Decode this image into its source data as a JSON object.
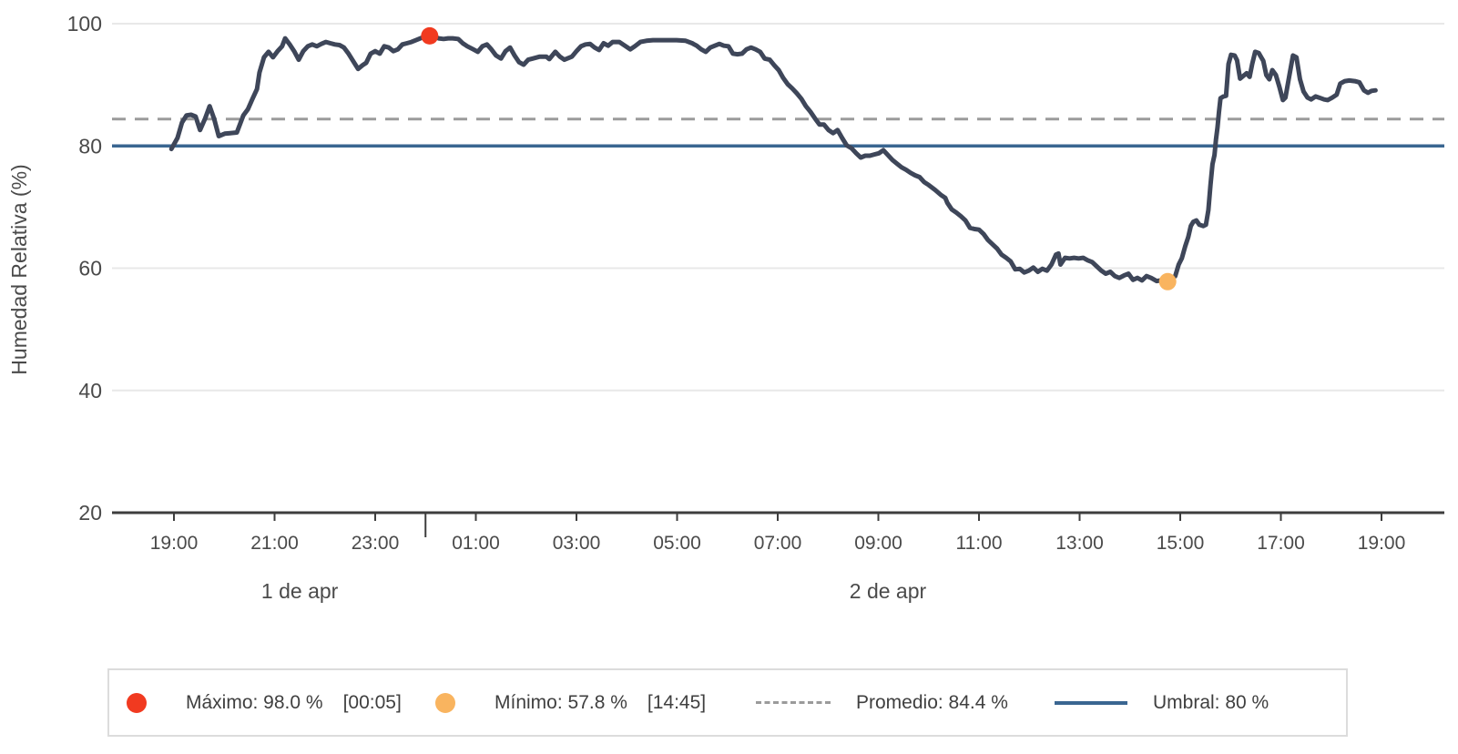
{
  "page": {
    "background": "#ffffff"
  },
  "chart_data": {
    "type": "line",
    "title": "",
    "xlabel": "",
    "ylabel": "Humedad Relativa (%)",
    "yticks": [
      20,
      40,
      60,
      80,
      100
    ],
    "ylim": [
      20,
      103.5
    ],
    "grid": true,
    "grid_color": "#e8e8e8",
    "axis_color": "#3d3d3d",
    "tick_label_color": "#4a4a4a",
    "x_ticks": [
      {
        "hour": 0,
        "label": "19:00"
      },
      {
        "hour": 2,
        "label": "21:00"
      },
      {
        "hour": 4,
        "label": "23:00"
      },
      {
        "hour": 6,
        "label": "01:00"
      },
      {
        "hour": 8,
        "label": "03:00"
      },
      {
        "hour": 10,
        "label": "05:00"
      },
      {
        "hour": 12,
        "label": "07:00"
      },
      {
        "hour": 14,
        "label": "09:00"
      },
      {
        "hour": 16,
        "label": "11:00"
      },
      {
        "hour": 18,
        "label": "13:00"
      },
      {
        "hour": 20,
        "label": "15:00"
      },
      {
        "hour": 22,
        "label": "17:00"
      },
      {
        "hour": 24,
        "label": "19:00"
      }
    ],
    "day_dividers": [
      {
        "hour": 5
      }
    ],
    "day_labels": [
      {
        "label": "1 de apr",
        "hour_center": 2.5
      },
      {
        "label": "2 de apr",
        "hour_center": 14.19
      }
    ],
    "reference_lines": [
      {
        "name": "promedio",
        "value": 84.4,
        "style": "dashed",
        "color": "#9b9b9b"
      },
      {
        "name": "umbral",
        "value": 80,
        "style": "solid",
        "color": "#3a6691"
      }
    ],
    "markers": [
      {
        "name": "maximo",
        "hour": 5.083,
        "value": 98.0,
        "color": "#f13a20",
        "time_label": "00:05"
      },
      {
        "name": "minimo",
        "hour": 19.75,
        "value": 57.8,
        "color": "#f9b45f",
        "time_label": "14:45"
      }
    ],
    "series": [
      {
        "name": "Humedad Relativa",
        "color": "#3e4659",
        "width": 5,
        "points": [
          [
            -0.05,
            79.5
          ],
          [
            0.07,
            81.3
          ],
          [
            0.16,
            83.8
          ],
          [
            0.25,
            85.0
          ],
          [
            0.34,
            85.1
          ],
          [
            0.43,
            84.8
          ],
          [
            0.52,
            82.6
          ],
          [
            0.62,
            84.5
          ],
          [
            0.71,
            86.5
          ],
          [
            0.8,
            84.4
          ],
          [
            0.89,
            81.6
          ],
          [
            1.01,
            82.0
          ],
          [
            1.12,
            82.1
          ],
          [
            1.25,
            82.2
          ],
          [
            1.38,
            85.0
          ],
          [
            1.47,
            86.0
          ],
          [
            1.56,
            87.7
          ],
          [
            1.65,
            89.3
          ],
          [
            1.7,
            92.0
          ],
          [
            1.79,
            94.5
          ],
          [
            1.88,
            95.4
          ],
          [
            1.97,
            94.5
          ],
          [
            2.06,
            95.5
          ],
          [
            2.15,
            96.3
          ],
          [
            2.21,
            97.6
          ],
          [
            2.3,
            96.6
          ],
          [
            2.39,
            95.5
          ],
          [
            2.48,
            94.1
          ],
          [
            2.57,
            95.5
          ],
          [
            2.66,
            96.3
          ],
          [
            2.75,
            96.6
          ],
          [
            2.84,
            96.3
          ],
          [
            2.93,
            96.7
          ],
          [
            3.02,
            97.0
          ],
          [
            3.11,
            96.8
          ],
          [
            3.2,
            96.6
          ],
          [
            3.29,
            96.5
          ],
          [
            3.38,
            96.1
          ],
          [
            3.47,
            95.1
          ],
          [
            3.56,
            93.9
          ],
          [
            3.66,
            92.6
          ],
          [
            3.75,
            93.2
          ],
          [
            3.82,
            93.6
          ],
          [
            3.91,
            95.1
          ],
          [
            4.0,
            95.5
          ],
          [
            4.09,
            95.1
          ],
          [
            4.18,
            96.3
          ],
          [
            4.27,
            96.1
          ],
          [
            4.36,
            95.5
          ],
          [
            4.45,
            95.8
          ],
          [
            4.54,
            96.6
          ],
          [
            4.63,
            96.8
          ],
          [
            4.72,
            97.0
          ],
          [
            4.81,
            97.3
          ],
          [
            4.9,
            97.6
          ],
          [
            4.99,
            97.9
          ],
          [
            5.08,
            98.0
          ],
          [
            5.17,
            97.9
          ],
          [
            5.26,
            97.6
          ],
          [
            5.36,
            97.5
          ],
          [
            5.45,
            97.6
          ],
          [
            5.54,
            97.6
          ],
          [
            5.65,
            97.5
          ],
          [
            5.74,
            96.8
          ],
          [
            5.83,
            96.3
          ],
          [
            5.95,
            95.8
          ],
          [
            6.04,
            95.4
          ],
          [
            6.13,
            96.3
          ],
          [
            6.22,
            96.6
          ],
          [
            6.31,
            95.8
          ],
          [
            6.4,
            94.8
          ],
          [
            6.5,
            94.3
          ],
          [
            6.59,
            95.5
          ],
          [
            6.68,
            96.1
          ],
          [
            6.77,
            94.8
          ],
          [
            6.86,
            93.7
          ],
          [
            6.95,
            93.3
          ],
          [
            7.04,
            94.1
          ],
          [
            7.13,
            94.3
          ],
          [
            7.27,
            94.6
          ],
          [
            7.4,
            94.6
          ],
          [
            7.46,
            94.2
          ],
          [
            7.58,
            95.4
          ],
          [
            7.67,
            94.6
          ],
          [
            7.76,
            94.1
          ],
          [
            7.91,
            94.6
          ],
          [
            8.0,
            95.5
          ],
          [
            8.09,
            96.3
          ],
          [
            8.18,
            96.6
          ],
          [
            8.27,
            96.7
          ],
          [
            8.36,
            96.1
          ],
          [
            8.45,
            95.7
          ],
          [
            8.54,
            96.8
          ],
          [
            8.63,
            96.4
          ],
          [
            8.72,
            97.0
          ],
          [
            8.85,
            97.0
          ],
          [
            8.98,
            96.3
          ],
          [
            9.07,
            95.8
          ],
          [
            9.16,
            96.3
          ],
          [
            9.27,
            97.0
          ],
          [
            9.39,
            97.2
          ],
          [
            9.52,
            97.3
          ],
          [
            9.81,
            97.3
          ],
          [
            9.99,
            97.3
          ],
          [
            10.17,
            97.2
          ],
          [
            10.3,
            96.8
          ],
          [
            10.39,
            96.4
          ],
          [
            10.48,
            95.8
          ],
          [
            10.57,
            95.4
          ],
          [
            10.66,
            96.1
          ],
          [
            10.75,
            96.4
          ],
          [
            10.84,
            96.7
          ],
          [
            10.93,
            96.4
          ],
          [
            11.02,
            96.3
          ],
          [
            11.11,
            95.1
          ],
          [
            11.2,
            95.0
          ],
          [
            11.29,
            95.1
          ],
          [
            11.38,
            95.8
          ],
          [
            11.47,
            96.1
          ],
          [
            11.56,
            95.8
          ],
          [
            11.65,
            95.4
          ],
          [
            11.74,
            94.3
          ],
          [
            11.84,
            94.1
          ],
          [
            11.93,
            93.2
          ],
          [
            12.02,
            92.4
          ],
          [
            12.11,
            91.1
          ],
          [
            12.2,
            90.1
          ],
          [
            12.29,
            89.4
          ],
          [
            12.38,
            88.6
          ],
          [
            12.47,
            87.7
          ],
          [
            12.56,
            86.5
          ],
          [
            12.65,
            85.6
          ],
          [
            12.74,
            84.5
          ],
          [
            12.83,
            83.5
          ],
          [
            12.92,
            83.5
          ],
          [
            13.01,
            82.6
          ],
          [
            13.1,
            82.1
          ],
          [
            13.19,
            82.6
          ],
          [
            13.28,
            81.3
          ],
          [
            13.37,
            80.1
          ],
          [
            13.47,
            79.6
          ],
          [
            13.56,
            78.8
          ],
          [
            13.65,
            78.1
          ],
          [
            13.74,
            78.4
          ],
          [
            13.83,
            78.4
          ],
          [
            13.92,
            78.6
          ],
          [
            14.01,
            78.8
          ],
          [
            14.1,
            79.3
          ],
          [
            14.19,
            78.5
          ],
          [
            14.28,
            77.7
          ],
          [
            14.37,
            77.1
          ],
          [
            14.46,
            76.5
          ],
          [
            14.55,
            76.1
          ],
          [
            14.64,
            75.6
          ],
          [
            14.73,
            75.2
          ],
          [
            14.82,
            74.9
          ],
          [
            14.91,
            74.1
          ],
          [
            15.0,
            73.6
          ],
          [
            15.13,
            72.8
          ],
          [
            15.24,
            72.0
          ],
          [
            15.33,
            71.5
          ],
          [
            15.37,
            70.7
          ],
          [
            15.46,
            69.6
          ],
          [
            15.55,
            69.1
          ],
          [
            15.64,
            68.5
          ],
          [
            15.73,
            67.8
          ],
          [
            15.82,
            66.6
          ],
          [
            15.91,
            66.4
          ],
          [
            16.0,
            66.3
          ],
          [
            16.09,
            65.6
          ],
          [
            16.18,
            64.6
          ],
          [
            16.27,
            63.9
          ],
          [
            16.36,
            63.2
          ],
          [
            16.45,
            62.2
          ],
          [
            16.54,
            61.7
          ],
          [
            16.63,
            61.1
          ],
          [
            16.72,
            59.8
          ],
          [
            16.81,
            59.9
          ],
          [
            16.9,
            59.3
          ],
          [
            16.99,
            59.6
          ],
          [
            17.08,
            60.1
          ],
          [
            17.17,
            59.4
          ],
          [
            17.26,
            59.9
          ],
          [
            17.35,
            59.6
          ],
          [
            17.44,
            60.6
          ],
          [
            17.53,
            62.2
          ],
          [
            17.58,
            62.4
          ],
          [
            17.62,
            60.6
          ],
          [
            17.71,
            61.7
          ],
          [
            17.8,
            61.6
          ],
          [
            17.89,
            61.7
          ],
          [
            17.98,
            61.6
          ],
          [
            18.07,
            61.7
          ],
          [
            18.16,
            61.3
          ],
          [
            18.25,
            61.0
          ],
          [
            18.34,
            60.3
          ],
          [
            18.43,
            59.6
          ],
          [
            18.52,
            59.1
          ],
          [
            18.61,
            59.4
          ],
          [
            18.7,
            58.7
          ],
          [
            18.79,
            58.4
          ],
          [
            18.88,
            58.8
          ],
          [
            18.97,
            59.1
          ],
          [
            19.06,
            58.1
          ],
          [
            19.15,
            58.4
          ],
          [
            19.24,
            58.0
          ],
          [
            19.33,
            58.7
          ],
          [
            19.42,
            58.4
          ],
          [
            19.53,
            57.9
          ],
          [
            19.62,
            58.0
          ],
          [
            19.75,
            57.8
          ],
          [
            19.9,
            58.7
          ],
          [
            19.97,
            60.6
          ],
          [
            20.03,
            61.6
          ],
          [
            20.1,
            63.6
          ],
          [
            20.16,
            65.1
          ],
          [
            20.21,
            66.9
          ],
          [
            20.26,
            67.6
          ],
          [
            20.32,
            67.8
          ],
          [
            20.38,
            67.1
          ],
          [
            20.46,
            66.9
          ],
          [
            20.51,
            67.1
          ],
          [
            20.56,
            69.5
          ],
          [
            20.6,
            73.6
          ],
          [
            20.64,
            77.0
          ],
          [
            20.68,
            78.5
          ],
          [
            20.71,
            81.0
          ],
          [
            20.74,
            83.0
          ],
          [
            20.77,
            85.5
          ],
          [
            20.8,
            87.8
          ],
          [
            20.86,
            88.1
          ],
          [
            20.91,
            88.2
          ],
          [
            20.96,
            93.4
          ],
          [
            21.01,
            94.9
          ],
          [
            21.08,
            94.8
          ],
          [
            21.13,
            94.0
          ],
          [
            21.19,
            91.0
          ],
          [
            21.26,
            91.5
          ],
          [
            21.32,
            91.9
          ],
          [
            21.38,
            91.3
          ],
          [
            21.43,
            93.4
          ],
          [
            21.49,
            95.4
          ],
          [
            21.56,
            95.2
          ],
          [
            21.65,
            93.9
          ],
          [
            21.71,
            91.6
          ],
          [
            21.77,
            90.9
          ],
          [
            21.83,
            92.4
          ],
          [
            21.9,
            91.6
          ],
          [
            21.97,
            89.7
          ],
          [
            22.04,
            87.5
          ],
          [
            22.09,
            87.9
          ],
          [
            22.17,
            91.6
          ],
          [
            22.24,
            94.8
          ],
          [
            22.31,
            94.5
          ],
          [
            22.38,
            90.9
          ],
          [
            22.45,
            88.9
          ],
          [
            22.53,
            87.9
          ],
          [
            22.6,
            87.6
          ],
          [
            22.69,
            88.1
          ],
          [
            22.76,
            87.9
          ],
          [
            22.86,
            87.6
          ],
          [
            22.93,
            87.5
          ],
          [
            23.02,
            87.9
          ],
          [
            23.11,
            88.4
          ],
          [
            23.18,
            90.2
          ],
          [
            23.27,
            90.6
          ],
          [
            23.36,
            90.7
          ],
          [
            23.47,
            90.6
          ],
          [
            23.56,
            90.4
          ],
          [
            23.65,
            89.1
          ],
          [
            23.73,
            88.7
          ],
          [
            23.8,
            89.0
          ],
          [
            23.88,
            89.1
          ]
        ]
      }
    ]
  },
  "legend": {
    "border_color": "#dcdcdc",
    "items": [
      {
        "label": "Máximo: 98.0 %",
        "extra": "[00:05]",
        "marker": "dot",
        "color": "#f13a20"
      },
      {
        "label": "Mínimo: 57.8 %",
        "extra": "[14:45]",
        "marker": "dot",
        "color": "#f9b45f"
      },
      {
        "label": "Promedio: 84.4 %",
        "extra": "",
        "marker": "dashed-line",
        "color": "#9b9b9b"
      },
      {
        "label": "Umbral: 80 %",
        "extra": "",
        "marker": "solid-line",
        "color": "#3a6691"
      }
    ]
  }
}
